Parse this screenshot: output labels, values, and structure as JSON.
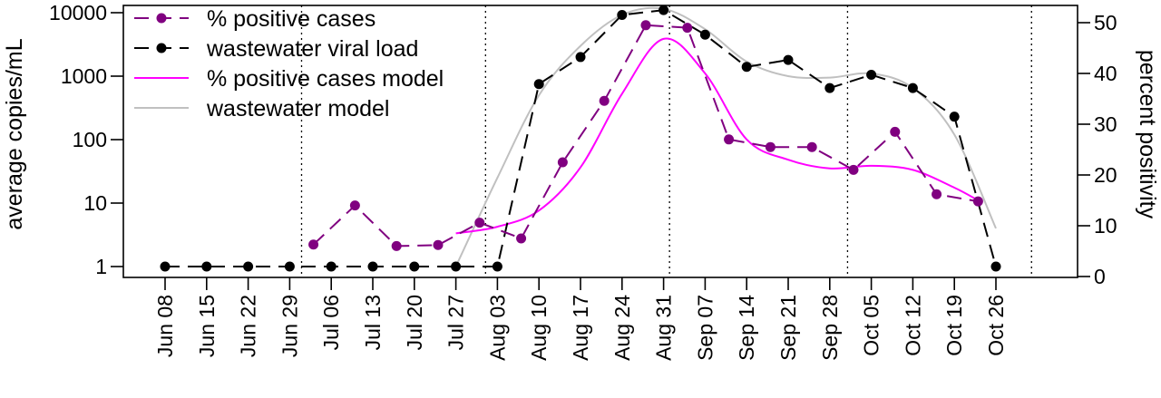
{
  "chart_data": {
    "type": "line",
    "x_dates": [
      "Jun 08",
      "Jun 15",
      "Jun 22",
      "Jun 29",
      "Jul 06",
      "Jul 13",
      "Jul 20",
      "Jul 27",
      "Aug 03",
      "Aug 10",
      "Aug 17",
      "Aug 24",
      "Aug 31",
      "Sep 07",
      "Sep 14",
      "Sep 21",
      "Sep 28",
      "Oct 05",
      "Oct 12",
      "Oct 19",
      "Oct 26"
    ],
    "ylabel_left": "average copies/mL",
    "ylabel_right": "percent positivity",
    "left_axis": {
      "scale": "log",
      "ticks": [
        1,
        10,
        100,
        1000,
        10000
      ],
      "tick_labels": [
        "1",
        "10",
        "100",
        "1000",
        "10000"
      ]
    },
    "right_axis": {
      "scale": "linear",
      "ylim": [
        0,
        52
      ],
      "ticks": [
        0,
        10,
        20,
        30,
        40,
        50
      ],
      "tick_labels": [
        "0",
        "10",
        "20",
        "30",
        "40",
        "50"
      ]
    },
    "vertical_reference_lines": [
      "Jul 01",
      "Aug 01",
      "Sep 01",
      "Oct 01",
      "Nov 01"
    ],
    "legend": {
      "placement": "top-left",
      "entries": [
        {
          "label": "% positive cases",
          "color": "#800080",
          "style": "dashed-points"
        },
        {
          "label": "wastewater viral load",
          "color": "#000000",
          "style": "dashed-points"
        },
        {
          "label": "% positive cases model",
          "color": "#ff00ff",
          "style": "solid"
        },
        {
          "label": "wastewater model",
          "color": "#c0c0c0",
          "style": "solid"
        }
      ]
    },
    "series": [
      {
        "name": "wastewater viral load",
        "axis": "left",
        "color": "#000000",
        "points": [
          [
            "Jun 08",
            1
          ],
          [
            "Jun 15",
            1
          ],
          [
            "Jun 22",
            1
          ],
          [
            "Jun 29",
            1
          ],
          [
            "Jul 06",
            1
          ],
          [
            "Jul 13",
            1
          ],
          [
            "Jul 20",
            1
          ],
          [
            "Jul 27",
            1
          ],
          [
            "Aug 03",
            1
          ],
          [
            "Aug 10",
            750
          ],
          [
            "Aug 17",
            2000
          ],
          [
            "Aug 24",
            9200
          ],
          [
            "Aug 31",
            11000
          ],
          [
            "Sep 07",
            4500
          ],
          [
            "Sep 14",
            1400
          ],
          [
            "Sep 21",
            1800
          ],
          [
            "Sep 28",
            650
          ],
          [
            "Oct 05",
            1050
          ],
          [
            "Oct 12",
            650
          ],
          [
            "Oct 19",
            230
          ],
          [
            "Oct 26",
            1
          ]
        ]
      },
      {
        "name": "% positive cases",
        "axis": "right",
        "color": "#800080",
        "points": [
          [
            "Jul 03",
            6.3
          ],
          [
            "Jul 10",
            14
          ],
          [
            "Jul 17",
            6
          ],
          [
            "Jul 24",
            6.2
          ],
          [
            "Jul 31",
            10.6
          ],
          [
            "Aug 07",
            7.5
          ],
          [
            "Aug 14",
            22.5
          ],
          [
            "Aug 21",
            34.6
          ],
          [
            "Aug 28",
            49.5
          ],
          [
            "Sep 04",
            49.0
          ],
          [
            "Sep 11",
            27
          ],
          [
            "Sep 18",
            25.5
          ],
          [
            "Sep 25",
            25.5
          ],
          [
            "Oct 02",
            21
          ],
          [
            "Oct 09",
            28.5
          ],
          [
            "Oct 16",
            16.2
          ],
          [
            "Oct 23",
            14.8
          ]
        ]
      },
      {
        "name": "% positive cases model",
        "axis": "right",
        "color": "#ff00ff",
        "points": [
          [
            "Jul 27",
            8.5
          ],
          [
            "Aug 03",
            9.8
          ],
          [
            "Aug 10",
            13
          ],
          [
            "Aug 17",
            21.5
          ],
          [
            "Aug 24",
            36
          ],
          [
            "Aug 31",
            46.8
          ],
          [
            "Sep 07",
            40
          ],
          [
            "Sep 14",
            27
          ],
          [
            "Sep 21",
            23
          ],
          [
            "Sep 28",
            21.3
          ],
          [
            "Oct 05",
            21.8
          ],
          [
            "Oct 12",
            21
          ],
          [
            "Oct 19",
            17.5
          ],
          [
            "Oct 23",
            15
          ]
        ]
      },
      {
        "name": "wastewater model",
        "axis": "left",
        "color": "#c0c0c0",
        "points": [
          [
            "Jul 27",
            1
          ],
          [
            "Aug 03",
            25
          ],
          [
            "Aug 10",
            500
          ],
          [
            "Aug 17",
            3000
          ],
          [
            "Aug 24",
            9200
          ],
          [
            "Aug 31",
            11500
          ],
          [
            "Sep 07",
            5500
          ],
          [
            "Sep 14",
            1700
          ],
          [
            "Sep 21",
            1000
          ],
          [
            "Sep 28",
            950
          ],
          [
            "Oct 05",
            1100
          ],
          [
            "Oct 12",
            650
          ],
          [
            "Oct 19",
            120
          ],
          [
            "Oct 26",
            4
          ]
        ]
      }
    ]
  }
}
